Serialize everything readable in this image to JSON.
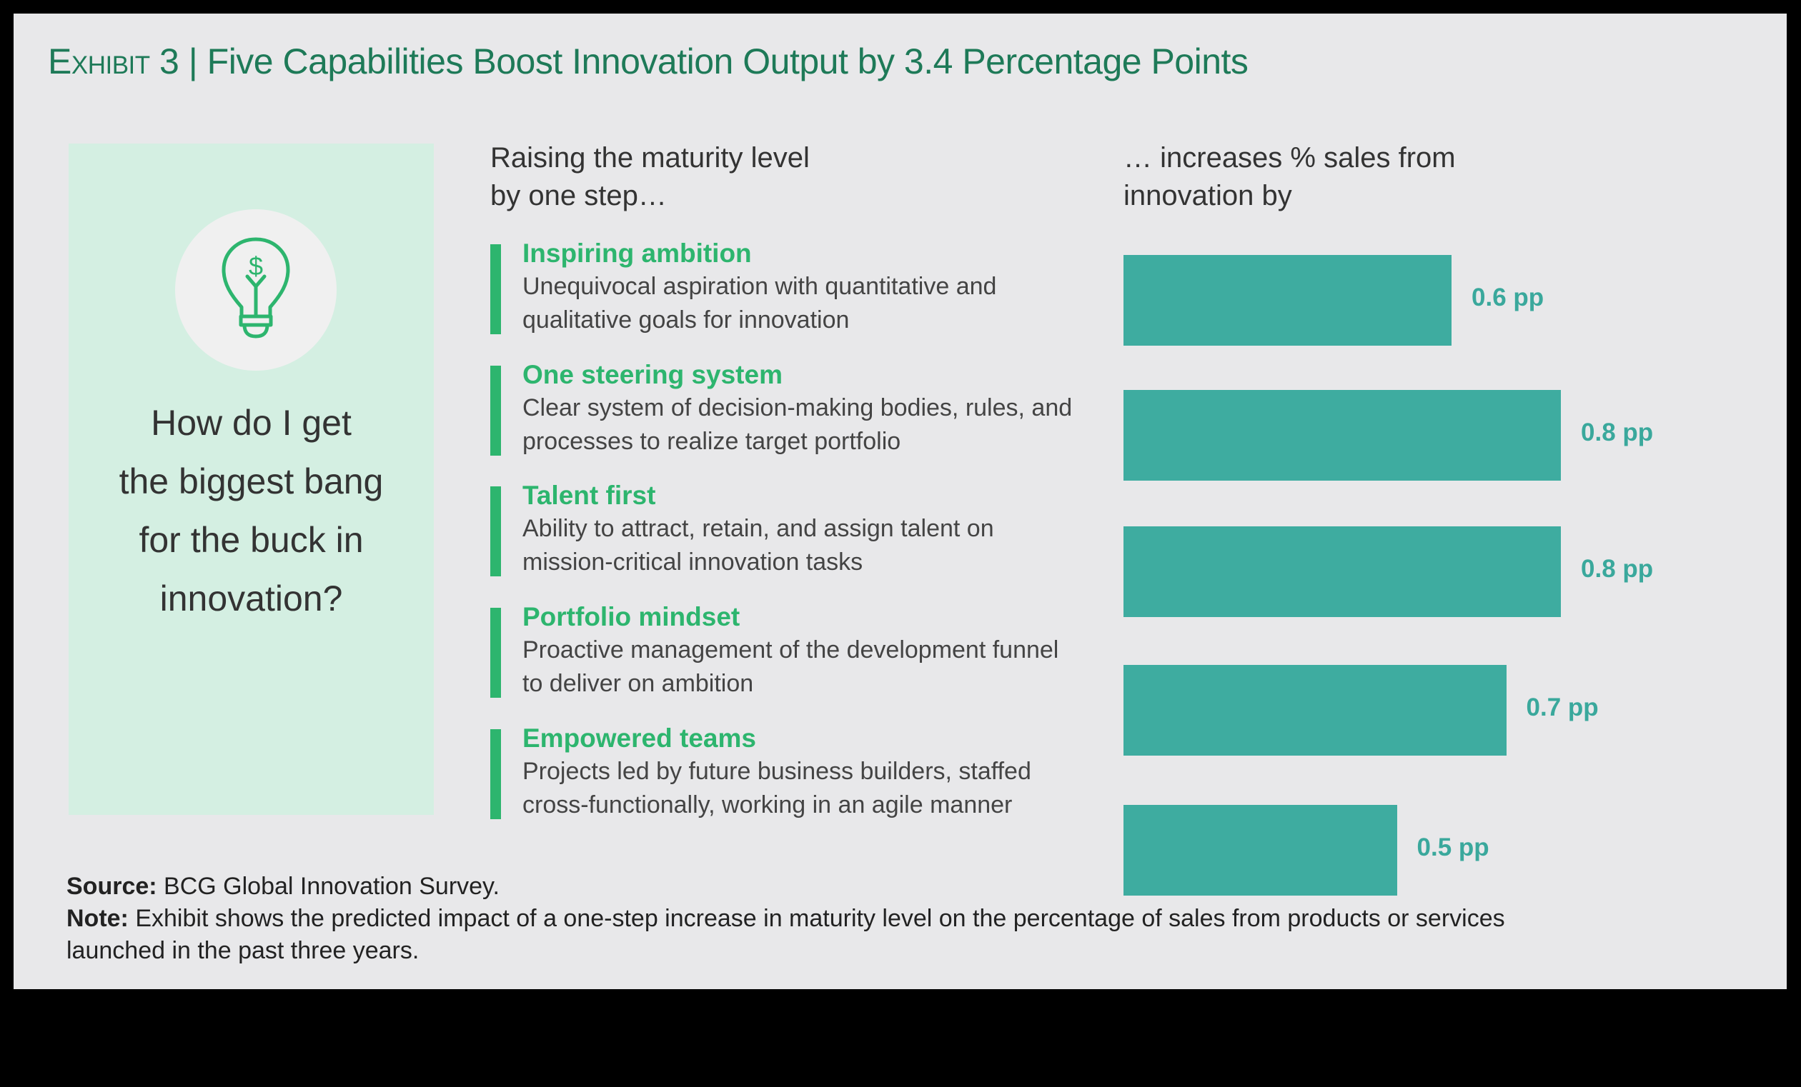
{
  "title": {
    "exhibit": "Exhibit 3",
    "separator": "|",
    "text": "Five Capabilities Boost Innovation Output by 3.4 Percentage Points"
  },
  "panel": {
    "icon": "lightbulb-dollar-icon",
    "question_lines": [
      "How do I get",
      "the biggest bang",
      "for the buck in",
      "innovation?"
    ]
  },
  "left_header": [
    "Raising the maturity level",
    "by one step…"
  ],
  "right_header": [
    "… increases % sales from",
    "innovation by"
  ],
  "colors": {
    "bar": "#3eaca0",
    "accent": "#2db56e",
    "title": "#1e7a58",
    "panel": "#d4efe2"
  },
  "chart_data": {
    "type": "bar",
    "orientation": "horizontal",
    "categories": [
      "Inspiring ambition",
      "One steering system",
      "Talent first",
      "Portfolio mindset",
      "Empowered teams"
    ],
    "descriptions": [
      [
        "Unequivocal aspiration with quantitative and",
        "qualitative goals for innovation"
      ],
      [
        "Clear system of decision-making bodies, rules, and",
        "processes to realize target portfolio"
      ],
      [
        "Ability to attract, retain, and assign talent on",
        "mission-critical innovation tasks"
      ],
      [
        "Proactive management of the development funnel",
        "to deliver on ambition"
      ],
      [
        "Projects led by future business builders, staffed",
        "cross-functionally, working in an agile manner"
      ]
    ],
    "values": [
      0.6,
      0.8,
      0.8,
      0.7,
      0.5
    ],
    "data_labels": [
      "0.6 pp",
      "0.8 pp",
      "0.8 pp",
      "0.7 pp",
      "0.5 pp"
    ],
    "unit": "pp",
    "grid": false
  },
  "footer": {
    "source_label": "Source:",
    "source_text": " BCG Global Innovation Survey.",
    "note_label": "Note:",
    "note_text": " Exhibit shows the predicted impact of a one-step increase in maturity level on the percentage of sales from products or services",
    "note_text_2": "launched in the past three years."
  }
}
